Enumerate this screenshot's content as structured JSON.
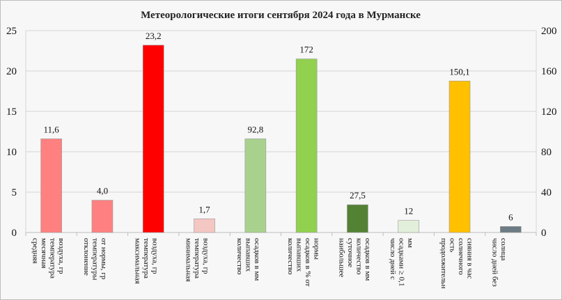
{
  "chart_data": {
    "type": "bar",
    "title": "Метеорологические итоги сентября 2024 года в Мурманске",
    "ylim": [
      0,
      25
    ],
    "y_ticks": [
      0,
      5,
      10,
      15,
      20,
      25
    ],
    "y2lim": [
      0,
      200
    ],
    "y2_ticks": [
      0,
      40,
      80,
      120,
      160,
      200
    ],
    "grid": true,
    "categories": [
      "средняя месячная температура воздуха, гр",
      "отклонение температуры от нормы, гр",
      "максимальная температура воздуха, гр",
      "минимальная температура воздуха, гр",
      "количество выпавших осадков в мм",
      "количество выпавших осадков в % от нормы",
      "наибольшее суточное количество осадков в мм",
      "число дней с осадками ≥ 0,1 мм",
      "продолжительность солнечного сияния в час",
      "число дней без солнца"
    ],
    "category_lines": [
      [
        "средняя",
        "месячная",
        "температура",
        "воздуха, гр"
      ],
      [
        "отклонение",
        "температуры",
        "от нормы, гр"
      ],
      [
        "максимальная",
        "температура",
        "воздуха, гр"
      ],
      [
        "минимальная",
        "температура",
        "воздуха, гр"
      ],
      [
        "количество",
        "выпавших",
        "осадков в мм"
      ],
      [
        "количество",
        "выпавших",
        "осадков в % от",
        "нормы"
      ],
      [
        "наибольшее",
        "суточное",
        "количество",
        "осадков в мм"
      ],
      [
        "число дней с",
        "осадками ≥ 0,1",
        "мм"
      ],
      [
        "продолжительн",
        "ость",
        "солнечного",
        "сияния в час"
      ],
      [
        "число дней без",
        "солнца"
      ]
    ],
    "values": [
      11.6,
      4.0,
      23.2,
      1.7,
      92.8,
      172,
      27.5,
      12,
      150.1,
      6
    ],
    "value_labels": [
      "11,6",
      "4,0",
      "23,2",
      "1,7",
      "92,8",
      "172",
      "27,5",
      "12",
      "150,1",
      "6"
    ],
    "axis": [
      "left",
      "left",
      "left",
      "left",
      "right",
      "right",
      "right",
      "right",
      "right",
      "right"
    ],
    "colors": [
      "#ff8080",
      "#ff8080",
      "#ff0000",
      "#f4c7c3",
      "#a9d18e",
      "#92d050",
      "#548235",
      "#e2efda",
      "#ffc000",
      "#6d7b84"
    ]
  }
}
